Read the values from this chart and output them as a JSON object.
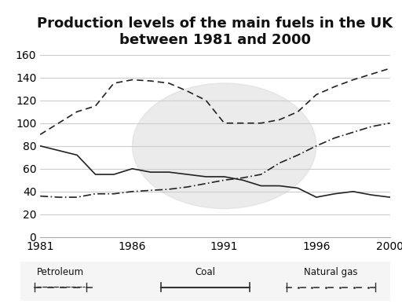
{
  "title": "Production levels of the main fuels in the UK\nbetween 1981 and 2000",
  "years": [
    1981,
    1982,
    1983,
    1984,
    1985,
    1986,
    1987,
    1988,
    1989,
    1990,
    1991,
    1992,
    1993,
    1994,
    1995,
    1996,
    1997,
    1998,
    1999,
    2000
  ],
  "petroleum": [
    80,
    76,
    72,
    55,
    55,
    60,
    57,
    57,
    55,
    53,
    53,
    50,
    45,
    45,
    43,
    35,
    38,
    40,
    37,
    35
  ],
  "coal": [
    90,
    100,
    110,
    115,
    135,
    138,
    137,
    135,
    128,
    120,
    100,
    100,
    100,
    103,
    110,
    125,
    132,
    138,
    143,
    148
  ],
  "natural_gas": [
    36,
    35,
    35,
    38,
    38,
    40,
    41,
    42,
    44,
    47,
    50,
    52,
    55,
    65,
    72,
    80,
    87,
    92,
    97,
    100
  ],
  "ylim": [
    0,
    160
  ],
  "yticks": [
    0,
    20,
    40,
    60,
    80,
    100,
    120,
    140,
    160
  ],
  "xlim": [
    1981,
    2000
  ],
  "xticks": [
    1981,
    1986,
    1991,
    1996,
    2000
  ],
  "bg_color": "#ffffff",
  "line_color": "#222222",
  "grid_color": "#cccccc",
  "title_fontsize": 13,
  "tick_fontsize": 10
}
